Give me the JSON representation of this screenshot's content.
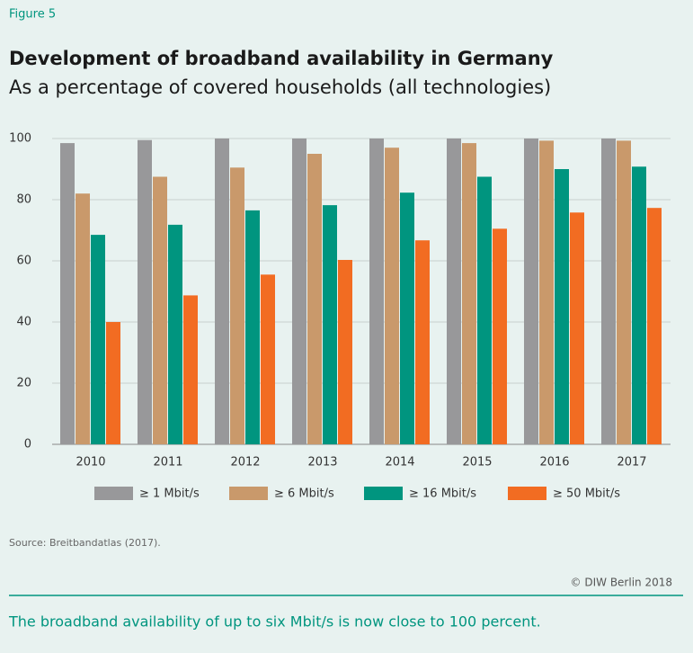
{
  "figure_label": "Figure 5",
  "chart_data": {
    "type": "bar",
    "title": "Development of broadband availability in Germany",
    "subtitle": "As a percentage of covered households (all technologies)",
    "categories": [
      "2010",
      "2011",
      "2012",
      "2013",
      "2014",
      "2015",
      "2016",
      "2017"
    ],
    "series": [
      {
        "name": "≥ 1 Mbit/s",
        "color": "#98989a",
        "values": [
          98.5,
          99.5,
          100,
          100,
          100,
          100,
          100,
          100
        ]
      },
      {
        "name": "≥ 6 Mbit/s",
        "color": "#c9996b",
        "values": [
          82,
          87.5,
          90.5,
          95,
          97,
          98.5,
          99.3,
          99.3
        ]
      },
      {
        "name": "≥ 16 Mbit/s",
        "color": "#00957f",
        "values": [
          68.5,
          71.8,
          76.5,
          78.2,
          82.3,
          87.5,
          90,
          90.8
        ]
      },
      {
        "name": "≥ 50 Mbit/s",
        "color": "#f26c22",
        "values": [
          40,
          48.7,
          55.5,
          60.3,
          66.7,
          70.5,
          75.8,
          77.3
        ]
      }
    ],
    "ylim": [
      0,
      100
    ],
    "yticks": [
      0,
      20,
      40,
      60,
      80,
      100
    ],
    "grid": true,
    "legend": "bottom"
  },
  "source": "Source: Breitbandatlas (2017).",
  "copyright": "© DIW Berlin 2018",
  "caption": "The broadband availability of up to six Mbit/s is now close to 100 percent."
}
